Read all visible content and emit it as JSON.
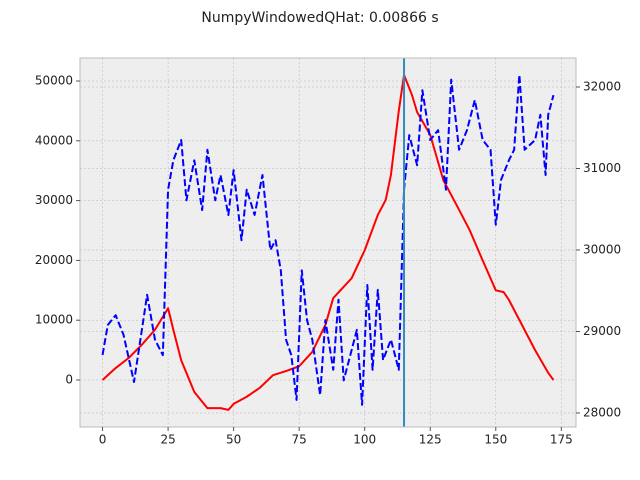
{
  "chart_data": {
    "type": "line",
    "title": "NumpyWindowedQHat: 0.00866 s",
    "xlim": [
      -8.6,
      180.6
    ],
    "xticks": [
      0,
      25,
      50,
      75,
      100,
      125,
      150,
      175
    ],
    "ylim": [
      -7860,
      53850
    ],
    "yticks": [
      0,
      10000,
      20000,
      30000,
      40000,
      50000
    ],
    "y2lim": [
      27828,
      32356
    ],
    "y2ticks": [
      28000,
      29000,
      30000,
      31000,
      32000
    ],
    "grid": true,
    "vline": 115,
    "vline_color": "#348abd",
    "series": [
      {
        "color": "#ff0000",
        "dash": false,
        "x": [
          0,
          5,
          10,
          15,
          20,
          25,
          27,
          30,
          35,
          40,
          45,
          48,
          50,
          55,
          60,
          65,
          70,
          75,
          80,
          85,
          88,
          95,
          100,
          105,
          108,
          110,
          113,
          115,
          118,
          120,
          125,
          130,
          135,
          140,
          145,
          150,
          153,
          155,
          160,
          165,
          170,
          172
        ],
        "values": [
          0,
          2000,
          3700,
          5900,
          8400,
          12000,
          8400,
          3300,
          -2000,
          -4700,
          -4700,
          -5000,
          -4000,
          -2800,
          -1300,
          800,
          1500,
          2300,
          4700,
          9200,
          13700,
          17000,
          21700,
          27600,
          30100,
          34300,
          45000,
          51000,
          47700,
          44800,
          41000,
          33400,
          29300,
          25100,
          20000,
          15000,
          14700,
          13400,
          9200,
          5000,
          1200,
          0
        ]
      },
      {
        "color": "#0000ff",
        "dash": true,
        "axis": "y2",
        "x": [
          0,
          2,
          5,
          8,
          12,
          15,
          17,
          20,
          23,
          25,
          27,
          30,
          32,
          35,
          38,
          40,
          43,
          45,
          48,
          50,
          53,
          55,
          58,
          61,
          64,
          66,
          68,
          70,
          72,
          74,
          76,
          78,
          80,
          83,
          85,
          88,
          90,
          92,
          95,
          97,
          99,
          101,
          103,
          105,
          107,
          110,
          113,
          115,
          117,
          120,
          122,
          125,
          128,
          131,
          133,
          136,
          139,
          142,
          145,
          148,
          150,
          152,
          155,
          157,
          159,
          161,
          165,
          167,
          169,
          170,
          172
        ],
        "values": [
          28712,
          29080,
          29200,
          28960,
          28380,
          29020,
          29450,
          28900,
          28710,
          30740,
          31100,
          31350,
          30610,
          31100,
          30490,
          31230,
          30610,
          30920,
          30430,
          30980,
          30120,
          30740,
          30430,
          30920,
          30000,
          30120,
          29750,
          28900,
          28710,
          28160,
          29750,
          29140,
          28900,
          28220,
          29140,
          28530,
          29390,
          28400,
          28770,
          29020,
          28100,
          29570,
          28530,
          29510,
          28650,
          28900,
          28530,
          30740,
          31410,
          31040,
          31960,
          31350,
          31470,
          30740,
          32090,
          31230,
          31470,
          31840,
          31350,
          31230,
          30310,
          30860,
          31100,
          31230,
          32150,
          31230,
          31350,
          31660,
          30920,
          31660,
          31900
        ]
      }
    ]
  }
}
